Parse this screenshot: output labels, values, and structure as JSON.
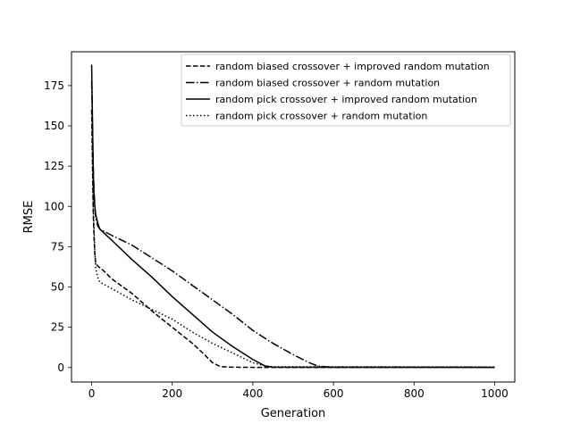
{
  "chart_data": {
    "type": "line",
    "title": "",
    "xlabel": "Generation",
    "ylabel": "RMSE",
    "xlim": [
      -50,
      1050
    ],
    "ylim": [
      -9,
      196
    ],
    "xticks": [
      0,
      200,
      400,
      600,
      800,
      1000
    ],
    "yticks": [
      0,
      25,
      50,
      75,
      100,
      125,
      150,
      175
    ],
    "grid": false,
    "legend_position": "upper right",
    "series": [
      {
        "name": "random biased crossover + improved random mutation",
        "line_style": "dashed",
        "color": "#000000",
        "points": [
          [
            0,
            160
          ],
          [
            2,
            130
          ],
          [
            4,
            96
          ],
          [
            6,
            80
          ],
          [
            8,
            70
          ],
          [
            10,
            65
          ],
          [
            15,
            63
          ],
          [
            30,
            60
          ],
          [
            50,
            55
          ],
          [
            100,
            46
          ],
          [
            150,
            35
          ],
          [
            200,
            25
          ],
          [
            250,
            15
          ],
          [
            280,
            8
          ],
          [
            300,
            3
          ],
          [
            320,
            0.5
          ],
          [
            350,
            0.2
          ],
          [
            400,
            0.1
          ],
          [
            1000,
            0.1
          ]
        ]
      },
      {
        "name": "random biased crossover + random mutation",
        "line_style": "dashdot",
        "color": "#000000",
        "points": [
          [
            0,
            178
          ],
          [
            2,
            150
          ],
          [
            4,
            125
          ],
          [
            6,
            110
          ],
          [
            8,
            100
          ],
          [
            10,
            93
          ],
          [
            15,
            88
          ],
          [
            20,
            86
          ],
          [
            50,
            82
          ],
          [
            100,
            76
          ],
          [
            150,
            68
          ],
          [
            200,
            60
          ],
          [
            250,
            51
          ],
          [
            300,
            42
          ],
          [
            350,
            33
          ],
          [
            400,
            23
          ],
          [
            450,
            15
          ],
          [
            500,
            8
          ],
          [
            540,
            3
          ],
          [
            560,
            1
          ],
          [
            580,
            0.5
          ],
          [
            600,
            0.2
          ],
          [
            1000,
            0.2
          ]
        ]
      },
      {
        "name": "random pick crossover + improved random mutation",
        "line_style": "solid",
        "color": "#000000",
        "points": [
          [
            0,
            188
          ],
          [
            2,
            155
          ],
          [
            4,
            120
          ],
          [
            6,
            105
          ],
          [
            8,
            100
          ],
          [
            10,
            95
          ],
          [
            15,
            90
          ],
          [
            20,
            86
          ],
          [
            50,
            79
          ],
          [
            100,
            67
          ],
          [
            150,
            56
          ],
          [
            200,
            44
          ],
          [
            250,
            33
          ],
          [
            300,
            22
          ],
          [
            350,
            13
          ],
          [
            400,
            5
          ],
          [
            430,
            1
          ],
          [
            450,
            0.2
          ],
          [
            1000,
            0.1
          ]
        ]
      },
      {
        "name": "random pick crossover + random mutation",
        "line_style": "dotted",
        "color": "#000000",
        "points": [
          [
            0,
            160
          ],
          [
            2,
            125
          ],
          [
            4,
            100
          ],
          [
            6,
            85
          ],
          [
            8,
            72
          ],
          [
            10,
            62
          ],
          [
            15,
            56
          ],
          [
            20,
            53
          ],
          [
            50,
            49
          ],
          [
            100,
            42
          ],
          [
            150,
            36
          ],
          [
            200,
            30
          ],
          [
            250,
            22
          ],
          [
            300,
            15
          ],
          [
            350,
            9
          ],
          [
            400,
            3
          ],
          [
            430,
            1
          ],
          [
            450,
            0.5
          ],
          [
            1000,
            0.3
          ]
        ]
      }
    ]
  }
}
